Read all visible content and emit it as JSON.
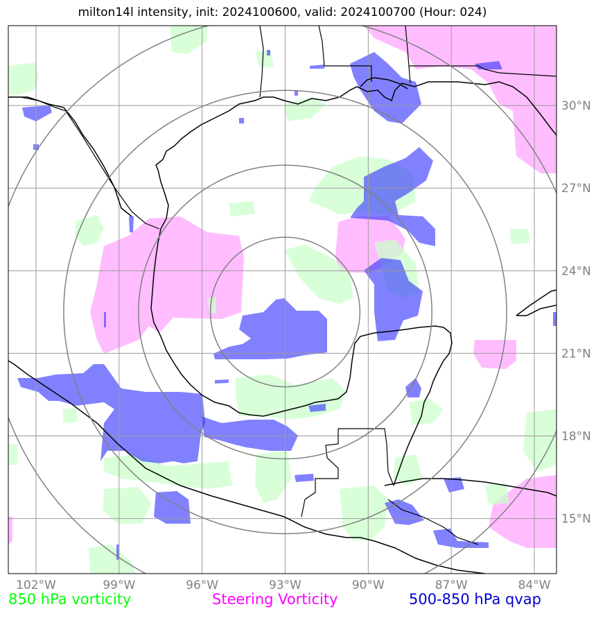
{
  "title": "milton14l intensity, init: 2024100600, valid: 2024100700 (Hour: 024)",
  "map": {
    "extent": {
      "lon_min": -103,
      "lon_max": -83.2,
      "lat_min": 13,
      "lat_max": 32.9
    },
    "center": {
      "lon": -93.0,
      "lat": 22.5
    },
    "range_rings_deg": [
      2.7,
      5.3,
      8.0,
      10.7
    ],
    "lat_ticks": [
      {
        "value": 30,
        "label": "30°N"
      },
      {
        "value": 27,
        "label": "27°N"
      },
      {
        "value": 24,
        "label": "24°N"
      },
      {
        "value": 21,
        "label": "21°N"
      },
      {
        "value": 18,
        "label": "18°N"
      },
      {
        "value": 15,
        "label": "15°N"
      }
    ],
    "lon_ticks": [
      {
        "value": -102,
        "label": "102°W"
      },
      {
        "value": -99,
        "label": "99°W"
      },
      {
        "value": -96,
        "label": "96°W"
      },
      {
        "value": -93,
        "label": "93°W"
      },
      {
        "value": -90,
        "label": "90°W"
      },
      {
        "value": -87,
        "label": "87°W"
      },
      {
        "value": -84,
        "label": "84°W"
      }
    ],
    "colors": {
      "vort850": "#ccffcc",
      "steering": "#ff99ff",
      "qvap": "#3333ff",
      "grid": "#999999",
      "rings": "#808080",
      "coast": "#000000"
    }
  },
  "legend": {
    "vort850": {
      "label": "850 hPa vorticity",
      "color": "#00ff00"
    },
    "steering": {
      "label": "Steering Vorticity",
      "color": "#ff00ff"
    },
    "qvap": {
      "label": "500-850 hPa qvap",
      "color": "#0000cc"
    }
  }
}
